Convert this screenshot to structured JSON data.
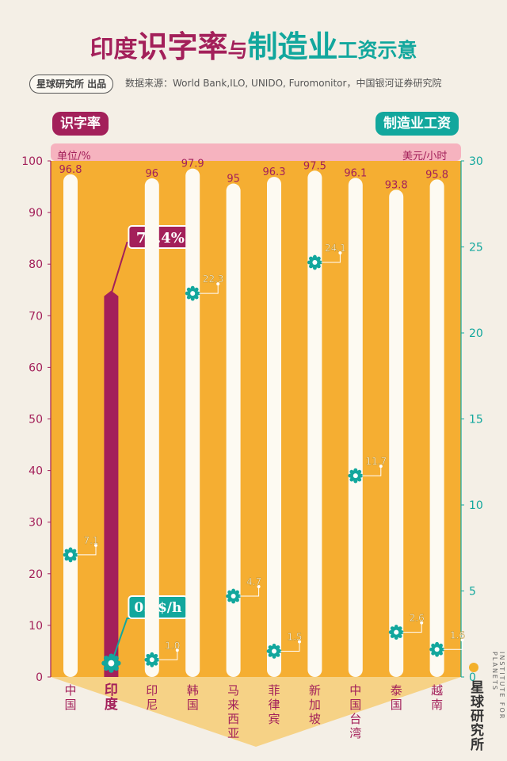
{
  "title": {
    "part1": "印度",
    "part2": "识字率",
    "part3": "与",
    "part4": "制造业",
    "part5": "工资示意"
  },
  "org_badge": "星球研究所 出品",
  "source": "数据来源：World Bank,ILO, UNIDO, Furomonitor，中国银河证券研究院",
  "left_tag": "识字率",
  "right_tag": "制造业工资",
  "left_unit": "单位/%",
  "right_unit": "美元/小时",
  "brand": "星球研究所",
  "brand_en": "INSTITUTE FOR PLANETS",
  "colors": {
    "orange": "#f5ae32",
    "magenta": "#a3205a",
    "teal": "#12a79d",
    "white_bar": "#fdfaf2"
  },
  "chart_data": {
    "type": "bar",
    "title": "印度识字率与制造业工资示意",
    "categories": [
      "中国",
      "印度",
      "印尼",
      "韩国",
      "马来西亚",
      "菲律宾",
      "新加坡",
      "中国台湾",
      "泰国",
      "越南"
    ],
    "highlight": "印度",
    "series": [
      {
        "name": "识字率",
        "axis": "left",
        "unit": "%",
        "values": [
          96.8,
          74.4,
          96,
          97.9,
          95,
          96.3,
          97.5,
          96.1,
          93.8,
          95.8
        ]
      },
      {
        "name": "制造业工资",
        "axis": "right",
        "unit": "美元/小时",
        "values": [
          7.1,
          0.8,
          1.0,
          22.3,
          4.7,
          1.5,
          24.1,
          11.7,
          2.6,
          1.6
        ]
      }
    ],
    "value_labels_literacy": [
      "96.8",
      "74.4%",
      "96",
      "97.9",
      "95",
      "96.3",
      "97.5",
      "96.1",
      "93.8",
      "95.8"
    ],
    "value_labels_wage": [
      "7.1",
      "0.8$/h",
      "1.0",
      "22.3",
      "4.7",
      "1.5",
      "24.1",
      "11.7",
      "2.6",
      "1.6"
    ],
    "left_axis": {
      "label": "单位/%",
      "ylim": [
        0,
        100
      ],
      "ticks": [
        0,
        10,
        20,
        30,
        40,
        50,
        60,
        70,
        80,
        90,
        100
      ]
    },
    "right_axis": {
      "label": "美元/小时",
      "ylim": [
        0,
        30
      ],
      "ticks": [
        0,
        5,
        10,
        15,
        20,
        25,
        30
      ]
    }
  }
}
